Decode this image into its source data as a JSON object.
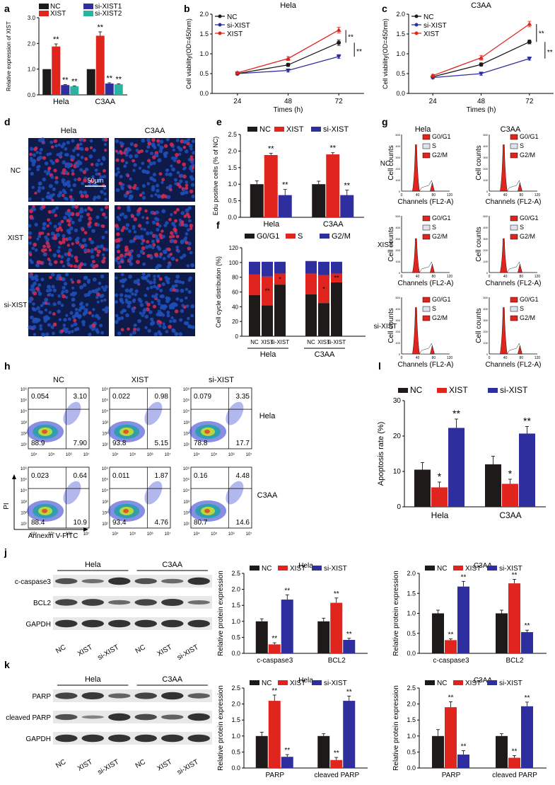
{
  "figure": {
    "panel_letters": [
      "a",
      "b",
      "c",
      "d",
      "e",
      "f",
      "g",
      "h",
      "l",
      "j",
      "k"
    ],
    "colors": {
      "nc": "#1f1a1a",
      "xist": "#e0251f",
      "si_xist": "#2e2e9e",
      "si_xist2": "#2bb3a1",
      "grid": "#d9d9d9",
      "cell_blue": "#1e4fb8",
      "cell_red": "#d02a52",
      "band": "#2c2c2c"
    }
  },
  "chart_data": [
    {
      "panel": "a",
      "type": "bar",
      "title": "",
      "ylabel": "Relative expression of XIST",
      "xlabel": "",
      "ylim": [
        0,
        3.0
      ],
      "yticks": [
        "0.0",
        "1.0",
        "2.0",
        "3.0"
      ],
      "categories": [
        "Hela",
        "C3AA"
      ],
      "series": [
        {
          "name": "NC",
          "color_key": "nc",
          "values": [
            1.0,
            1.0
          ],
          "errors": [
            0,
            0
          ],
          "sig": [
            "",
            ""
          ]
        },
        {
          "name": "XIST",
          "color_key": "xist",
          "values": [
            1.88,
            2.3
          ],
          "errors": [
            0.1,
            0.15
          ],
          "sig": [
            "**",
            "**"
          ]
        },
        {
          "name": "si-XIST1",
          "color_key": "si_xist",
          "values": [
            0.38,
            0.44
          ],
          "errors": [
            0.02,
            0.03
          ],
          "sig": [
            "**",
            "**"
          ]
        },
        {
          "name": "si-XIST2",
          "color_key": "si_xist2",
          "values": [
            0.33,
            0.41
          ],
          "errors": [
            0.02,
            0.02
          ],
          "sig": [
            "**",
            "**"
          ]
        }
      ]
    },
    {
      "panel": "b",
      "type": "line",
      "title": "Hela",
      "ylabel": "Cell viability(OD=450nm)",
      "xlabel": "Times (h)",
      "x": [
        24,
        48,
        72
      ],
      "ylim": [
        0,
        2.0
      ],
      "yticks": [
        "0.0",
        "0.5",
        "1.0",
        "1.5",
        "2.0"
      ],
      "series": [
        {
          "name": "NC",
          "color_key": "nc",
          "marker": "circle",
          "values": [
            0.5,
            0.72,
            1.28
          ],
          "errors": [
            0.03,
            0.04,
            0.07
          ]
        },
        {
          "name": "si-XIST",
          "color_key": "si_xist",
          "marker": "triangle-down",
          "values": [
            0.5,
            0.58,
            0.93
          ],
          "errors": [
            0.03,
            0.04,
            0.05
          ]
        },
        {
          "name": "XIST",
          "color_key": "xist",
          "marker": "triangle-up",
          "values": [
            0.52,
            0.88,
            1.6
          ],
          "errors": [
            0.03,
            0.05,
            0.07
          ]
        }
      ],
      "sig": [
        "**",
        "**"
      ]
    },
    {
      "panel": "c",
      "type": "line",
      "title": "C3AA",
      "ylabel": "Cell viability(OD=450nm)",
      "xlabel": "Times (h)",
      "x": [
        24,
        48,
        72
      ],
      "ylim": [
        0,
        2.0
      ],
      "yticks": [
        "0.0",
        "0.5",
        "1.0",
        "1.5",
        "2.0"
      ],
      "series": [
        {
          "name": "NC",
          "color_key": "nc",
          "marker": "circle",
          "values": [
            0.42,
            0.73,
            1.3
          ],
          "errors": [
            0.03,
            0.04,
            0.05
          ]
        },
        {
          "name": "si-XIST",
          "color_key": "si_xist",
          "marker": "triangle-down",
          "values": [
            0.4,
            0.5,
            0.88
          ],
          "errors": [
            0.03,
            0.04,
            0.04
          ]
        },
        {
          "name": "XIST",
          "color_key": "xist",
          "marker": "triangle-up",
          "values": [
            0.45,
            0.9,
            1.75
          ],
          "errors": [
            0.03,
            0.06,
            0.07
          ]
        }
      ],
      "sig": [
        "**",
        "**"
      ]
    },
    {
      "panel": "e",
      "type": "bar",
      "ylabel": "Edu positive cells (% of NC)",
      "ylim": [
        0,
        2.5
      ],
      "yticks": [
        "0.0",
        "0.5",
        "1.0",
        "1.5",
        "2.0",
        "2.5"
      ],
      "categories": [
        "Hela",
        "C3AA"
      ],
      "series": [
        {
          "name": "NC",
          "color_key": "nc",
          "values": [
            1.0,
            1.0
          ],
          "errors": [
            0.1,
            0.09
          ],
          "sig": [
            "",
            ""
          ]
        },
        {
          "name": "XIST",
          "color_key": "xist",
          "values": [
            1.88,
            1.9
          ],
          "errors": [
            0.05,
            0.05
          ],
          "sig": [
            "**",
            "**"
          ]
        },
        {
          "name": "si-XIST",
          "color_key": "si_xist",
          "values": [
            0.67,
            0.67
          ],
          "errors": [
            0.17,
            0.15
          ],
          "sig": [
            "**",
            "**"
          ]
        }
      ]
    },
    {
      "panel": "f",
      "type": "bar",
      "stacked": true,
      "ylabel": "Cell cycle distribution (%)",
      "ylim": [
        0,
        120
      ],
      "yticks": [
        "0",
        "20",
        "40",
        "60",
        "80",
        "100",
        "120"
      ],
      "categories": [
        "NC",
        "XIST",
        "si-XIST",
        "NC",
        "XIST",
        "si-XIST"
      ],
      "groups": [
        "Hela",
        "C3AA"
      ],
      "series": [
        {
          "name": "G0/G1",
          "color_key": "nc",
          "values": [
            56,
            42,
            70,
            57,
            45,
            73
          ]
        },
        {
          "name": "S",
          "color_key": "xist",
          "values": [
            28,
            39,
            15,
            28,
            38,
            12
          ]
        },
        {
          "name": "G2/M",
          "color_key": "si_xist",
          "values": [
            17,
            20,
            16,
            17,
            18,
            16
          ]
        }
      ],
      "sig": [
        "",
        "**",
        "*",
        "",
        "*",
        "**"
      ]
    },
    {
      "panel": "l",
      "type": "bar",
      "ylabel": "Apoptosis rate (%)",
      "ylim": [
        0,
        30
      ],
      "yticks": [
        "0",
        "10",
        "20",
        "30"
      ],
      "categories": [
        "Hela",
        "C3AA"
      ],
      "series": [
        {
          "name": "NC",
          "color_key": "nc",
          "values": [
            10.5,
            12.0
          ],
          "errors": [
            2.0,
            2.3
          ],
          "sig": [
            "",
            ""
          ]
        },
        {
          "name": "XIST",
          "color_key": "xist",
          "values": [
            5.5,
            6.5
          ],
          "errors": [
            1.5,
            1.3
          ],
          "sig": [
            "*",
            "*"
          ]
        },
        {
          "name": "si-XIST",
          "color_key": "si_xist",
          "values": [
            22.3,
            20.7
          ],
          "errors": [
            2.5,
            2.0
          ],
          "sig": [
            "**",
            "**"
          ]
        }
      ]
    },
    {
      "panel": "j-hela",
      "type": "bar",
      "title": "Hela",
      "ylabel": "Relative protein expression",
      "ylim": [
        0,
        2.5
      ],
      "yticks": [
        "0.0",
        "0.5",
        "1.0",
        "1.5",
        "2.0",
        "2.5"
      ],
      "categories": [
        "c-caspase3",
        "BCL2"
      ],
      "series": [
        {
          "name": "NC",
          "color_key": "nc",
          "values": [
            1.0,
            1.0
          ],
          "errors": [
            0.08,
            0.1
          ],
          "sig": [
            "",
            ""
          ]
        },
        {
          "name": "XIST",
          "color_key": "xist",
          "values": [
            0.28,
            1.58
          ],
          "errors": [
            0.05,
            0.15
          ],
          "sig": [
            "**",
            "**"
          ]
        },
        {
          "name": "si-XIST",
          "color_key": "si_xist",
          "values": [
            1.68,
            0.42
          ],
          "errors": [
            0.15,
            0.05
          ],
          "sig": [
            "**",
            "**"
          ]
        }
      ]
    },
    {
      "panel": "j-c3aa",
      "type": "bar",
      "title": "C3AA",
      "ylabel": "Relative protein expression",
      "ylim": [
        0,
        2.0
      ],
      "yticks": [
        "0.0",
        "0.5",
        "1.0",
        "1.5",
        "2.0"
      ],
      "categories": [
        "c-caspase3",
        "BCL2"
      ],
      "series": [
        {
          "name": "NC",
          "color_key": "nc",
          "values": [
            1.0,
            1.0
          ],
          "errors": [
            0.08,
            0.08
          ],
          "sig": [
            "",
            ""
          ]
        },
        {
          "name": "XIST",
          "color_key": "xist",
          "values": [
            0.33,
            1.75
          ],
          "errors": [
            0.03,
            0.1
          ],
          "sig": [
            "**",
            "**"
          ]
        },
        {
          "name": "si-XIST",
          "color_key": "si_xist",
          "values": [
            1.67,
            0.53
          ],
          "errors": [
            0.13,
            0.05
          ],
          "sig": [
            "**",
            "**"
          ]
        }
      ]
    },
    {
      "panel": "k-hela",
      "type": "bar",
      "title": "Hela",
      "ylabel": "Relative protein expression",
      "ylim": [
        0,
        2.5
      ],
      "yticks": [
        "0.0",
        "0.5",
        "1.0",
        "1.5",
        "2.0",
        "2.5"
      ],
      "categories": [
        "PARP",
        "cleaved PARP"
      ],
      "series": [
        {
          "name": "NC",
          "color_key": "nc",
          "values": [
            1.0,
            1.0
          ],
          "errors": [
            0.12,
            0.07
          ],
          "sig": [
            "",
            ""
          ]
        },
        {
          "name": "XIST",
          "color_key": "xist",
          "values": [
            2.1,
            0.25
          ],
          "errors": [
            0.18,
            0.08
          ],
          "sig": [
            "**",
            "**"
          ]
        },
        {
          "name": "si-XIST",
          "color_key": "si_xist",
          "values": [
            0.35,
            2.1
          ],
          "errors": [
            0.07,
            0.15
          ],
          "sig": [
            "**",
            "**"
          ]
        }
      ]
    },
    {
      "panel": "k-c3aa",
      "type": "bar",
      "title": "C3AA",
      "ylabel": "Relative protein expression",
      "ylim": [
        0,
        2.5
      ],
      "yticks": [
        "0.0",
        "0.5",
        "1.0",
        "1.5",
        "2.0",
        "2.5"
      ],
      "categories": [
        "PARP",
        "cleaved PARP"
      ],
      "series": [
        {
          "name": "NC",
          "color_key": "nc",
          "values": [
            1.0,
            1.0
          ],
          "errors": [
            0.2,
            0.07
          ],
          "sig": [
            "",
            ""
          ]
        },
        {
          "name": "XIST",
          "color_key": "xist",
          "values": [
            1.9,
            0.32
          ],
          "errors": [
            0.17,
            0.07
          ],
          "sig": [
            "**",
            "**"
          ]
        },
        {
          "name": "si-XIST",
          "color_key": "si_xist",
          "values": [
            0.42,
            1.93
          ],
          "errors": [
            0.12,
            0.13
          ],
          "sig": [
            "**",
            "**"
          ]
        }
      ]
    }
  ],
  "panel_d": {
    "col_labels": [
      "Hela",
      "C3AA"
    ],
    "row_labels": [
      "NC",
      "XIST",
      "si-XIST"
    ],
    "scale_bar": "50μm",
    "red_fraction": [
      [
        0.2,
        0.22
      ],
      [
        0.42,
        0.4
      ],
      [
        0.12,
        0.12
      ]
    ]
  },
  "panel_g": {
    "col_labels": [
      "Hela",
      "C3AA"
    ],
    "row_labels": [
      "NC",
      "XIST",
      "si-XIST"
    ],
    "legend": [
      "G0/G1",
      "S",
      "G2/M"
    ],
    "ylabel": "Cell counts",
    "xlabel": "Channels (FL2-A)",
    "xticks": [
      "0",
      "40",
      "80",
      "120"
    ],
    "yticks": [
      "0",
      "50",
      "100",
      "150",
      "200",
      "250",
      "300",
      "350",
      "400",
      "450",
      "500"
    ]
  },
  "panel_h": {
    "col_labels": [
      "NC",
      "XIST",
      "si-XIST"
    ],
    "row_labels": [
      "Hela",
      "C3AA"
    ],
    "xlabel": "Annexin V-FITC",
    "ylabel": "PI",
    "xticks": [
      "10⁴",
      "10⁵",
      "10⁶",
      "10⁷"
    ],
    "yticks": [
      "10¹",
      "10²",
      "10³",
      "10⁴",
      "10⁵",
      "10⁶"
    ],
    "quadrants": [
      [
        [
          "0.054",
          "3.10",
          "88.9",
          "7.90"
        ],
        [
          "0.022",
          "0.98",
          "93.8",
          "5.15"
        ],
        [
          "0.079",
          "3.35",
          "78.8",
          "17.7"
        ]
      ],
      [
        [
          "0.023",
          "0.64",
          "88.4",
          "10.9"
        ],
        [
          "0.011",
          "1.87",
          "93.4",
          "4.76"
        ],
        [
          "0.16",
          "4.48",
          "80.7",
          "14.6"
        ]
      ]
    ]
  },
  "blots": {
    "j": {
      "groups": [
        "Hela",
        "C3AA"
      ],
      "proteins": [
        "c-caspase3",
        "BCL2",
        "GAPDH"
      ],
      "lanes": [
        "NC",
        "XIST",
        "si-XIST",
        "NC",
        "XIST",
        "si-XIST"
      ],
      "intensity": [
        [
          0.7,
          0.45,
          0.95,
          0.7,
          0.5,
          0.95
        ],
        [
          0.8,
          0.85,
          0.5,
          0.8,
          0.9,
          0.45
        ],
        [
          0.95,
          0.95,
          0.95,
          0.95,
          0.95,
          0.95
        ]
      ]
    },
    "k": {
      "groups": [
        "Hela",
        "C3AA"
      ],
      "proteins": [
        "PARP",
        "cleaved PARP",
        "GAPDH"
      ],
      "lanes": [
        "NC",
        "XIST",
        "si-XIST",
        "NC",
        "XIST",
        "si-XIST"
      ],
      "intensity": [
        [
          0.8,
          0.9,
          0.55,
          0.8,
          0.95,
          0.6
        ],
        [
          0.7,
          0.3,
          0.95,
          0.75,
          0.55,
          0.95
        ],
        [
          0.95,
          0.95,
          0.95,
          0.95,
          0.95,
          0.95
        ]
      ]
    }
  }
}
